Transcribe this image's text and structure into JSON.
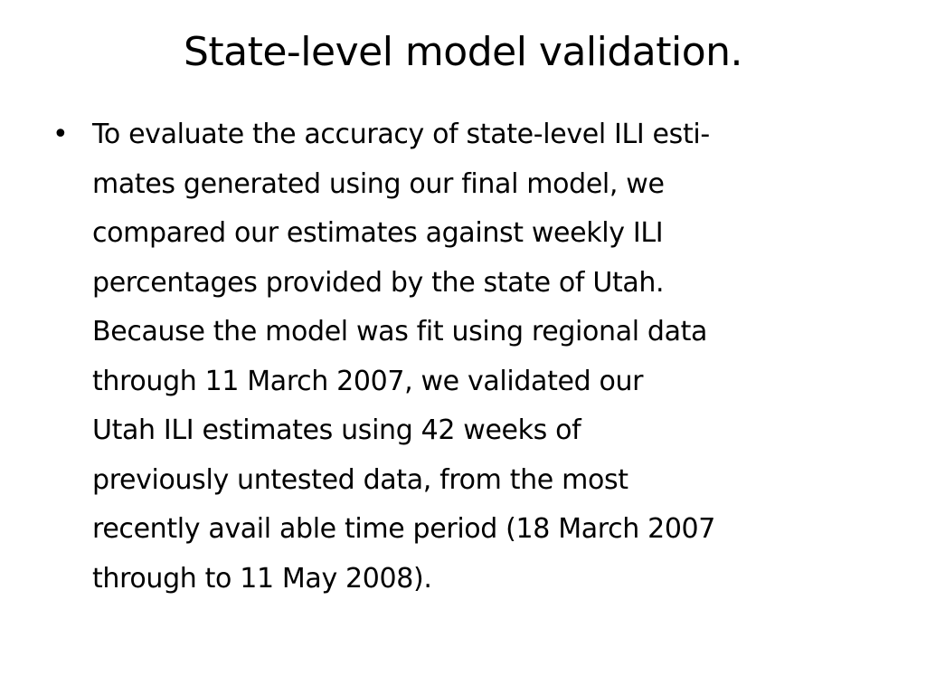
{
  "slide": {
    "title": "State-level model validation.",
    "bullets": [
      {
        "marker": "•",
        "lines": [
          "To evaluate the accuracy of state-level ILI esti-",
          "mates generated using our final model, we",
          "compared our estimates against weekly ILI",
          "percentages provided by the state of Utah.",
          "Because the model was fit using regional data",
          "through 11 March 2007, we validated our",
          "Utah ILI estimates using 42 weeks of",
          "previously untested data, from the most",
          "recently avail able time period (18 March 2007",
          "through to 11 May 2008)."
        ]
      }
    ]
  }
}
